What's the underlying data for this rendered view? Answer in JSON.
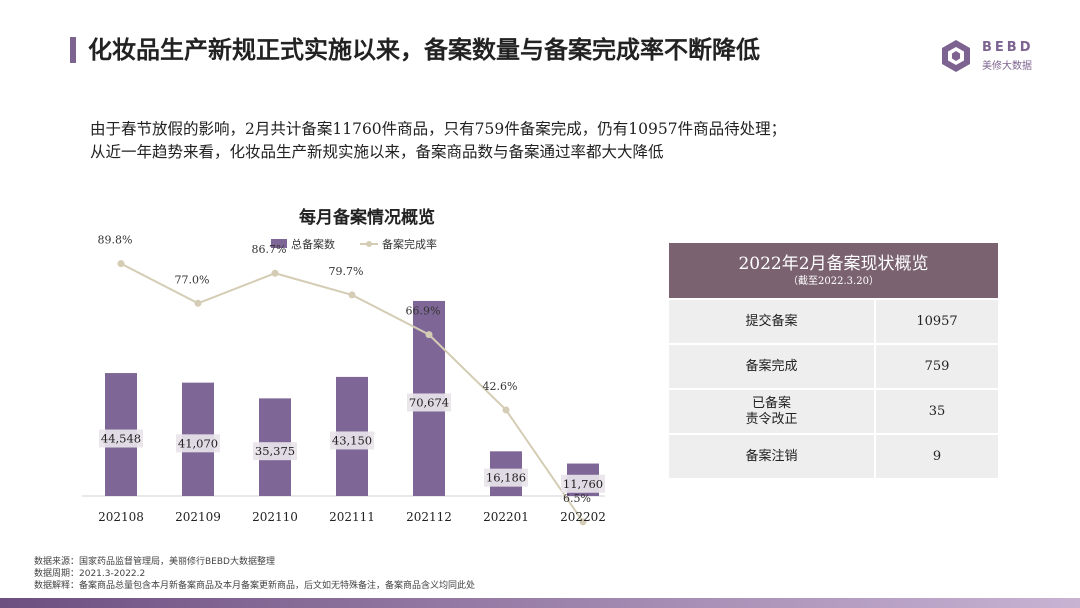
{
  "header": {
    "title": "化妆品生产新规正式实施以来，备案数量与备案完成率不断降低",
    "logo_text": "BEBD",
    "logo_sub": "美修大数据"
  },
  "description": {
    "line1": "由于春节放假的影响，2月共计备案11760件商品，只有759件备案完成，仍有10957件商品待处理；",
    "line2": "从近一年趋势来看，化妆品生产新规实施以来，备案商品数与备案通过率都大大降低"
  },
  "chart_data": {
    "type": "bar",
    "title": "每月备案情况概览",
    "categories": [
      "202108",
      "202109",
      "202110",
      "202111",
      "202112",
      "202201",
      "202202"
    ],
    "series": [
      {
        "name": "总备案数",
        "kind": "bar",
        "axis": "left",
        "color": "#7e6796",
        "values": [
          44548,
          41070,
          35375,
          43150,
          70674,
          16186,
          11760
        ],
        "labels": [
          "44,548",
          "41,070",
          "35,375",
          "43,150",
          "70,674",
          "16,186",
          "11,760"
        ]
      },
      {
        "name": "备案完成率",
        "kind": "line",
        "axis": "right",
        "color": "#d4ccb4",
        "values": [
          89.8,
          77.0,
          86.7,
          79.7,
          66.9,
          42.6,
          6.5
        ],
        "labels": [
          "89.8%",
          "77.0%",
          "86.7%",
          "79.7%",
          "66.9%",
          "42.6%",
          "6.5%"
        ]
      }
    ],
    "ylim": [
      0,
      75000
    ],
    "y2lim": [
      0,
      100
    ],
    "legend": "top-center",
    "grid": false
  },
  "status_table": {
    "title": "2022年2月备案现状概览",
    "subtitle": "（截至2022.3.20）",
    "rows": [
      {
        "label": "提交备案",
        "value": "10957"
      },
      {
        "label": "备案完成",
        "value": "759"
      },
      {
        "label": "已备案\n责令改正",
        "value": "35"
      },
      {
        "label": "备案注销",
        "value": "9"
      }
    ]
  },
  "footer": {
    "source": "数据来源：国家药品监督管理局，美丽修行BEBD大数据整理",
    "period": "数据周期：2021.3-2022.2",
    "note": "数据解释：备案商品总量包含本月新备案商品及本月备案更新商品，后文如无特殊备注，备案商品含义均同此处"
  }
}
